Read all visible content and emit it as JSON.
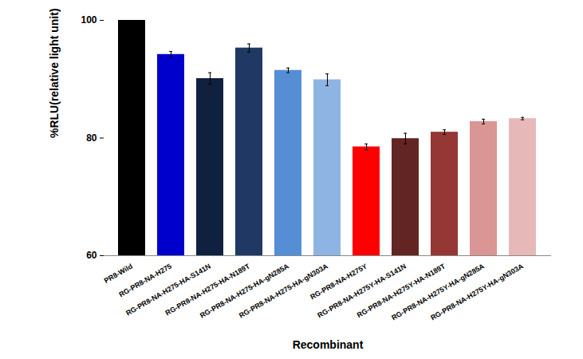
{
  "chart_data": {
    "type": "bar",
    "x_label": "Recombinant",
    "y_label": "%RLU(relative light unit)",
    "categories": [
      "PR8-Wild",
      "RG-PR8-NA-H275",
      "RG-PR8-NA-H275-HA-S141N",
      "RG-PR8-NA-H275-HA-N189T",
      "RG-PR8-NA-H275-HA-gN285A",
      "RG-PR8-NA-H275-HA-gN303A",
      "RG-PR8-NA-H275Y",
      "RG-PR8-NA-H275Y-HA-S141N",
      "RG-PR8-NA-H275Y-HA-N189T",
      "RG-PR8-NA-H275Y-HA-gN285A",
      "RG-PR8-NA-H275Y-HA-gN303A"
    ],
    "values": [
      100,
      94.2,
      90.1,
      95.3,
      91.5,
      89.9,
      78.5,
      79.9,
      81.0,
      82.8,
      83.3
    ],
    "errors": [
      0.2,
      0.5,
      1.0,
      0.7,
      0.4,
      1.0,
      0.5,
      0.9,
      0.4,
      0.4,
      0.2
    ],
    "colors": [
      "#000000",
      "#0000cc",
      "#10213f",
      "#1f3864",
      "#558ed5",
      "#8eb4e3",
      "#ff0000",
      "#632523",
      "#953735",
      "#d99694",
      "#e6b9b8"
    ],
    "ylim": [
      60,
      100
    ],
    "yticks": [
      60,
      80,
      100
    ],
    "grid": false
  }
}
